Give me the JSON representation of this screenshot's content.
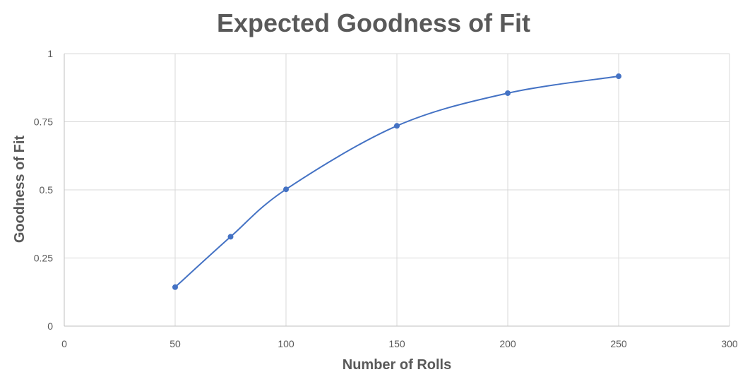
{
  "chart_data": {
    "type": "scatter",
    "title": "Expected Goodness of Fit",
    "xlabel": "Number of Rolls",
    "ylabel": "Goodness of Fit",
    "xlim": [
      0,
      300
    ],
    "ylim": [
      0,
      1
    ],
    "x_ticks": [
      0,
      50,
      100,
      150,
      200,
      250,
      300
    ],
    "x_tick_labels": [
      "0",
      "50",
      "100",
      "150",
      "200",
      "250",
      "300"
    ],
    "y_ticks": [
      0,
      0.25,
      0.5,
      0.75,
      1
    ],
    "y_tick_labels": [
      "0",
      "0.25",
      "0.5",
      "0.75",
      "1"
    ],
    "grid": true,
    "legend": "none",
    "smooth_line": true,
    "series": [
      {
        "x": [
          50,
          75,
          100,
          150,
          200,
          250
        ],
        "y": [
          0.143,
          0.328,
          0.502,
          0.735,
          0.855,
          0.917
        ],
        "color": "#4472c4"
      }
    ]
  }
}
